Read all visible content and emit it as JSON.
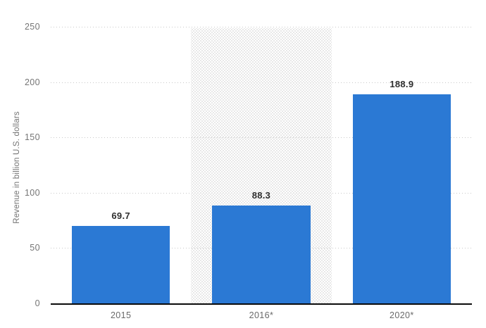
{
  "chart_data": {
    "type": "bar",
    "title": "",
    "categories": [
      "2015",
      "2016*",
      "2020*"
    ],
    "values": [
      69.7,
      88.3,
      188.9
    ],
    "value_labels": [
      "69.7",
      "88.3",
      "188.9"
    ],
    "xlabel": "",
    "ylabel": "Revenue in billion U.S. dollars",
    "ylim": [
      0,
      250
    ],
    "yticks": [
      0,
      50,
      100,
      150,
      200,
      250
    ],
    "grid": "horizontal dotted lines, no vertical grid",
    "legend": "none",
    "highlighted_category_index": 1,
    "highlight_style": "light gray dotted column behind middle bar"
  },
  "colors": {
    "bar_fill": "#2b79d4",
    "axis_line": "#0b0b0b",
    "gridline": "#c9c9c9",
    "tick_text": "#757575",
    "x_label_text": "#696969",
    "y_title_text": "#737373",
    "value_label_text": "#2e2e2e",
    "highlight_dots": "#e2e2e2",
    "background": "#ffffff"
  }
}
